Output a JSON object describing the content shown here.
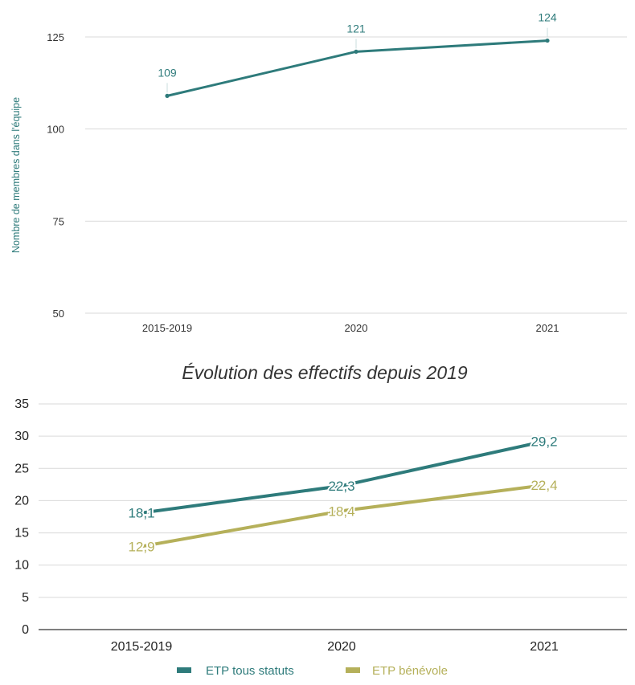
{
  "chart_data": [
    {
      "type": "line",
      "title": "",
      "xlabel": "",
      "ylabel": "Nombre de membres dans l'équipe",
      "categories": [
        "2015-2019",
        "2020",
        "2021"
      ],
      "ylim": [
        50,
        125
      ],
      "yticks": [
        50,
        75,
        100,
        125
      ],
      "grid": true,
      "legend": "none",
      "series": [
        {
          "values": [
            109,
            121,
            124
          ],
          "labels": [
            "109",
            "121",
            "124"
          ],
          "color": "#2e7b7b"
        }
      ]
    },
    {
      "type": "line",
      "title": "Évolution des effectifs depuis 2019",
      "xlabel": "",
      "ylabel": "",
      "categories": [
        "2015-2019",
        "2020",
        "2021"
      ],
      "ylim": [
        0,
        35
      ],
      "yticks": [
        0,
        5,
        10,
        15,
        20,
        25,
        30,
        35
      ],
      "grid": true,
      "legend": "bottom",
      "series": [
        {
          "name": "ETP tous statuts",
          "values": [
            18.1,
            22.3,
            29.2
          ],
          "labels": [
            "18,1",
            "22,3",
            "29,2"
          ],
          "color": "#2e7b7b"
        },
        {
          "name": "ETP bénévole",
          "values": [
            12.9,
            18.4,
            22.4
          ],
          "labels": [
            "12,9",
            "18,4",
            "22,4"
          ],
          "color": "#b5b05a"
        }
      ]
    }
  ]
}
